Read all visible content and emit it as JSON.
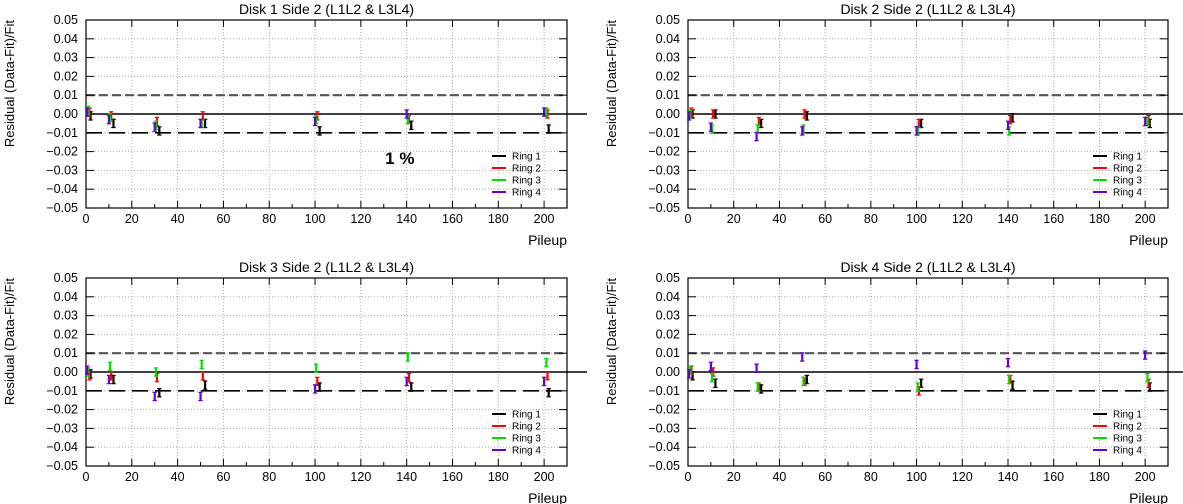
{
  "figure": {
    "x_label": "Pileup"
  },
  "chart_data": [
    {
      "type": "scatter",
      "title": "Disk 1 Side 2 (L1L2 & L3L4)",
      "xlabel": "Pileup",
      "ylabel": "Residual  (Data-Fit)/Fit",
      "xlim": [
        0,
        210
      ],
      "ylim": [
        -0.05,
        0.05
      ],
      "x_ticks": [
        "0",
        "20",
        "40",
        "60",
        "80",
        "100",
        "120",
        "140",
        "160",
        "180",
        "200"
      ],
      "y_ticks": [
        "0.05",
        "0.04",
        "0.03",
        "0.02",
        "0.01",
        "0.00",
        "−0.01",
        "−0.02",
        "−0.03",
        "−0.04",
        "−0.05"
      ],
      "reference_lines": [
        {
          "y": 0.0,
          "style": "solid"
        },
        {
          "y": 0.01,
          "style": "dashed"
        },
        {
          "y": -0.01,
          "style": "dashed"
        }
      ],
      "grid": true,
      "legend_position": "bottom-right",
      "annotation": "1 %",
      "series": [
        {
          "name": "Ring 1",
          "color": "#000000",
          "x": [
            2,
            12,
            32,
            52,
            102,
            142,
            202
          ],
          "y": [
            -0.001,
            -0.005,
            -0.009,
            -0.005,
            -0.009,
            -0.006,
            -0.008
          ],
          "err": 0.0022
        },
        {
          "name": "Ring 2",
          "color": "#ff0000",
          "x": [
            1.5,
            11,
            31,
            51,
            101,
            141,
            201.5
          ],
          "y": [
            0.001,
            -0.001,
            -0.004,
            -0.001,
            -0.001,
            -0.003,
            0.0
          ],
          "err": 0.0022
        },
        {
          "name": "Ring 3",
          "color": "#00dd00",
          "x": [
            1,
            10.5,
            30.5,
            50.5,
            100.5,
            140.5,
            201
          ],
          "y": [
            0.002,
            -0.002,
            -0.006,
            -0.005,
            -0.003,
            -0.003,
            0.001
          ],
          "err": 0.0022
        },
        {
          "name": "Ring 4",
          "color": "#6600cc",
          "x": [
            0.5,
            10,
            30,
            50,
            100,
            140,
            200
          ],
          "y": [
            0.001,
            -0.003,
            -0.007,
            -0.005,
            -0.004,
            0.0,
            0.001
          ],
          "err": 0.0022
        }
      ]
    },
    {
      "type": "scatter",
      "title": "Disk 2 Side 2 (L1L2 & L3L4)",
      "xlabel": "Pileup",
      "ylabel": "Residual  (Data-Fit)/Fit",
      "xlim": [
        0,
        210
      ],
      "ylim": [
        -0.05,
        0.05
      ],
      "x_ticks": [
        "0",
        "20",
        "40",
        "60",
        "80",
        "100",
        "120",
        "140",
        "160",
        "180",
        "200"
      ],
      "y_ticks": [
        "0.05",
        "0.04",
        "0.03",
        "0.02",
        "0.01",
        "0.00",
        "−0.01",
        "−0.02",
        "−0.03",
        "−0.04",
        "−0.05"
      ],
      "reference_lines": [
        {
          "y": 0.0,
          "style": "solid"
        },
        {
          "y": 0.01,
          "style": "dashed"
        },
        {
          "y": -0.01,
          "style": "dashed"
        }
      ],
      "grid": true,
      "legend_position": "bottom-right",
      "series": [
        {
          "name": "Ring 1",
          "color": "#000000",
          "x": [
            2,
            12,
            32,
            52,
            102,
            142,
            202
          ],
          "y": [
            0.0,
            0.0,
            -0.005,
            -0.001,
            -0.005,
            -0.002,
            -0.005
          ],
          "err": 0.0022
        },
        {
          "name": "Ring 2",
          "color": "#ff0000",
          "x": [
            1.5,
            11,
            31,
            51,
            101,
            141,
            201.5
          ],
          "y": [
            0.001,
            0.0,
            -0.004,
            0.0,
            -0.005,
            -0.003,
            -0.003
          ],
          "err": 0.0022
        },
        {
          "name": "Ring 3",
          "color": "#00dd00",
          "x": [
            1,
            10.5,
            30.5,
            50.5,
            100.5,
            140.5,
            201
          ],
          "y": [
            0.0,
            -0.008,
            -0.008,
            -0.008,
            -0.009,
            -0.009,
            -0.004
          ],
          "err": 0.0022
        },
        {
          "name": "Ring 4",
          "color": "#6600cc",
          "x": [
            0.5,
            10,
            30,
            50,
            100,
            140,
            200
          ],
          "y": [
            -0.001,
            -0.007,
            -0.012,
            -0.009,
            -0.009,
            -0.006,
            -0.004
          ],
          "err": 0.0022
        }
      ]
    },
    {
      "type": "scatter",
      "title": "Disk 3 Side 2 (L1L2 & L3L4)",
      "xlabel": "Pileup",
      "ylabel": "Residual  (Data-Fit)/Fit",
      "xlim": [
        0,
        210
      ],
      "ylim": [
        -0.05,
        0.05
      ],
      "x_ticks": [
        "0",
        "20",
        "40",
        "60",
        "80",
        "100",
        "120",
        "140",
        "160",
        "180",
        "200"
      ],
      "y_ticks": [
        "0.05",
        "0.04",
        "0.03",
        "0.02",
        "0.01",
        "0.00",
        "−0.01",
        "−0.02",
        "−0.03",
        "−0.04",
        "−0.05"
      ],
      "reference_lines": [
        {
          "y": 0.0,
          "style": "solid"
        },
        {
          "y": 0.01,
          "style": "dashed"
        },
        {
          "y": -0.01,
          "style": "dashed"
        }
      ],
      "grid": true,
      "legend_position": "bottom-right",
      "series": [
        {
          "name": "Ring 1",
          "color": "#000000",
          "x": [
            2,
            12,
            32,
            52,
            102,
            142,
            202
          ],
          "y": [
            -0.001,
            -0.004,
            -0.011,
            -0.007,
            -0.008,
            -0.008,
            -0.011
          ],
          "err": 0.0022
        },
        {
          "name": "Ring 2",
          "color": "#ff0000",
          "x": [
            1.5,
            11,
            31,
            51,
            101,
            141,
            201.5
          ],
          "y": [
            -0.002,
            -0.002,
            -0.003,
            -0.002,
            -0.005,
            -0.003,
            -0.002
          ],
          "err": 0.0022
        },
        {
          "name": "Ring 3",
          "color": "#00dd00",
          "x": [
            1,
            10.5,
            30.5,
            50.5,
            100.5,
            140.5,
            201
          ],
          "y": [
            0.0,
            0.003,
            0.0,
            0.004,
            0.002,
            0.008,
            0.005
          ],
          "err": 0.0022
        },
        {
          "name": "Ring 4",
          "color": "#6600cc",
          "x": [
            0.5,
            10,
            30,
            50,
            100,
            140,
            200
          ],
          "y": [
            0.001,
            -0.004,
            -0.013,
            -0.013,
            -0.009,
            -0.005,
            -0.005
          ],
          "err": 0.0022
        }
      ]
    },
    {
      "type": "scatter",
      "title": "Disk 4 Side 2 (L1L2 & L3L4)",
      "xlabel": "Pileup",
      "ylabel": "Residual  (Data-Fit)/Fit",
      "xlim": [
        0,
        210
      ],
      "ylim": [
        -0.05,
        0.05
      ],
      "x_ticks": [
        "0",
        "20",
        "40",
        "60",
        "80",
        "100",
        "120",
        "140",
        "160",
        "180",
        "200"
      ],
      "y_ticks": [
        "0.05",
        "0.04",
        "0.03",
        "0.02",
        "0.01",
        "0.00",
        "−0.01",
        "−0.02",
        "−0.03",
        "−0.04",
        "−0.05"
      ],
      "reference_lines": [
        {
          "y": 0.0,
          "style": "solid"
        },
        {
          "y": 0.01,
          "style": "dashed"
        },
        {
          "y": -0.01,
          "style": "dashed"
        }
      ],
      "grid": true,
      "legend_position": "bottom-right",
      "series": [
        {
          "name": "Ring 1",
          "color": "#000000",
          "x": [
            2,
            12,
            32,
            52,
            102,
            142,
            202
          ],
          "y": [
            -0.002,
            -0.006,
            -0.009,
            -0.004,
            -0.006,
            -0.007,
            -0.008
          ],
          "err": 0.0022
        },
        {
          "name": "Ring 2",
          "color": "#ff0000",
          "x": [
            1.5,
            11,
            31,
            51,
            101,
            141,
            201.5
          ],
          "y": [
            0.001,
            0.0,
            -0.008,
            -0.005,
            -0.01,
            -0.004,
            -0.006
          ],
          "err": 0.0022
        },
        {
          "name": "Ring 3",
          "color": "#00dd00",
          "x": [
            1,
            10.5,
            30.5,
            50.5,
            100.5,
            140.5,
            201
          ],
          "y": [
            0.001,
            -0.003,
            -0.008,
            -0.005,
            -0.008,
            -0.004,
            -0.003
          ],
          "err": 0.0022
        },
        {
          "name": "Ring 4",
          "color": "#6600cc",
          "x": [
            0.5,
            10,
            30,
            50,
            100,
            140,
            200
          ],
          "y": [
            -0.001,
            0.003,
            0.002,
            0.008,
            0.004,
            0.005,
            0.009
          ],
          "err": 0.0022
        }
      ]
    }
  ]
}
